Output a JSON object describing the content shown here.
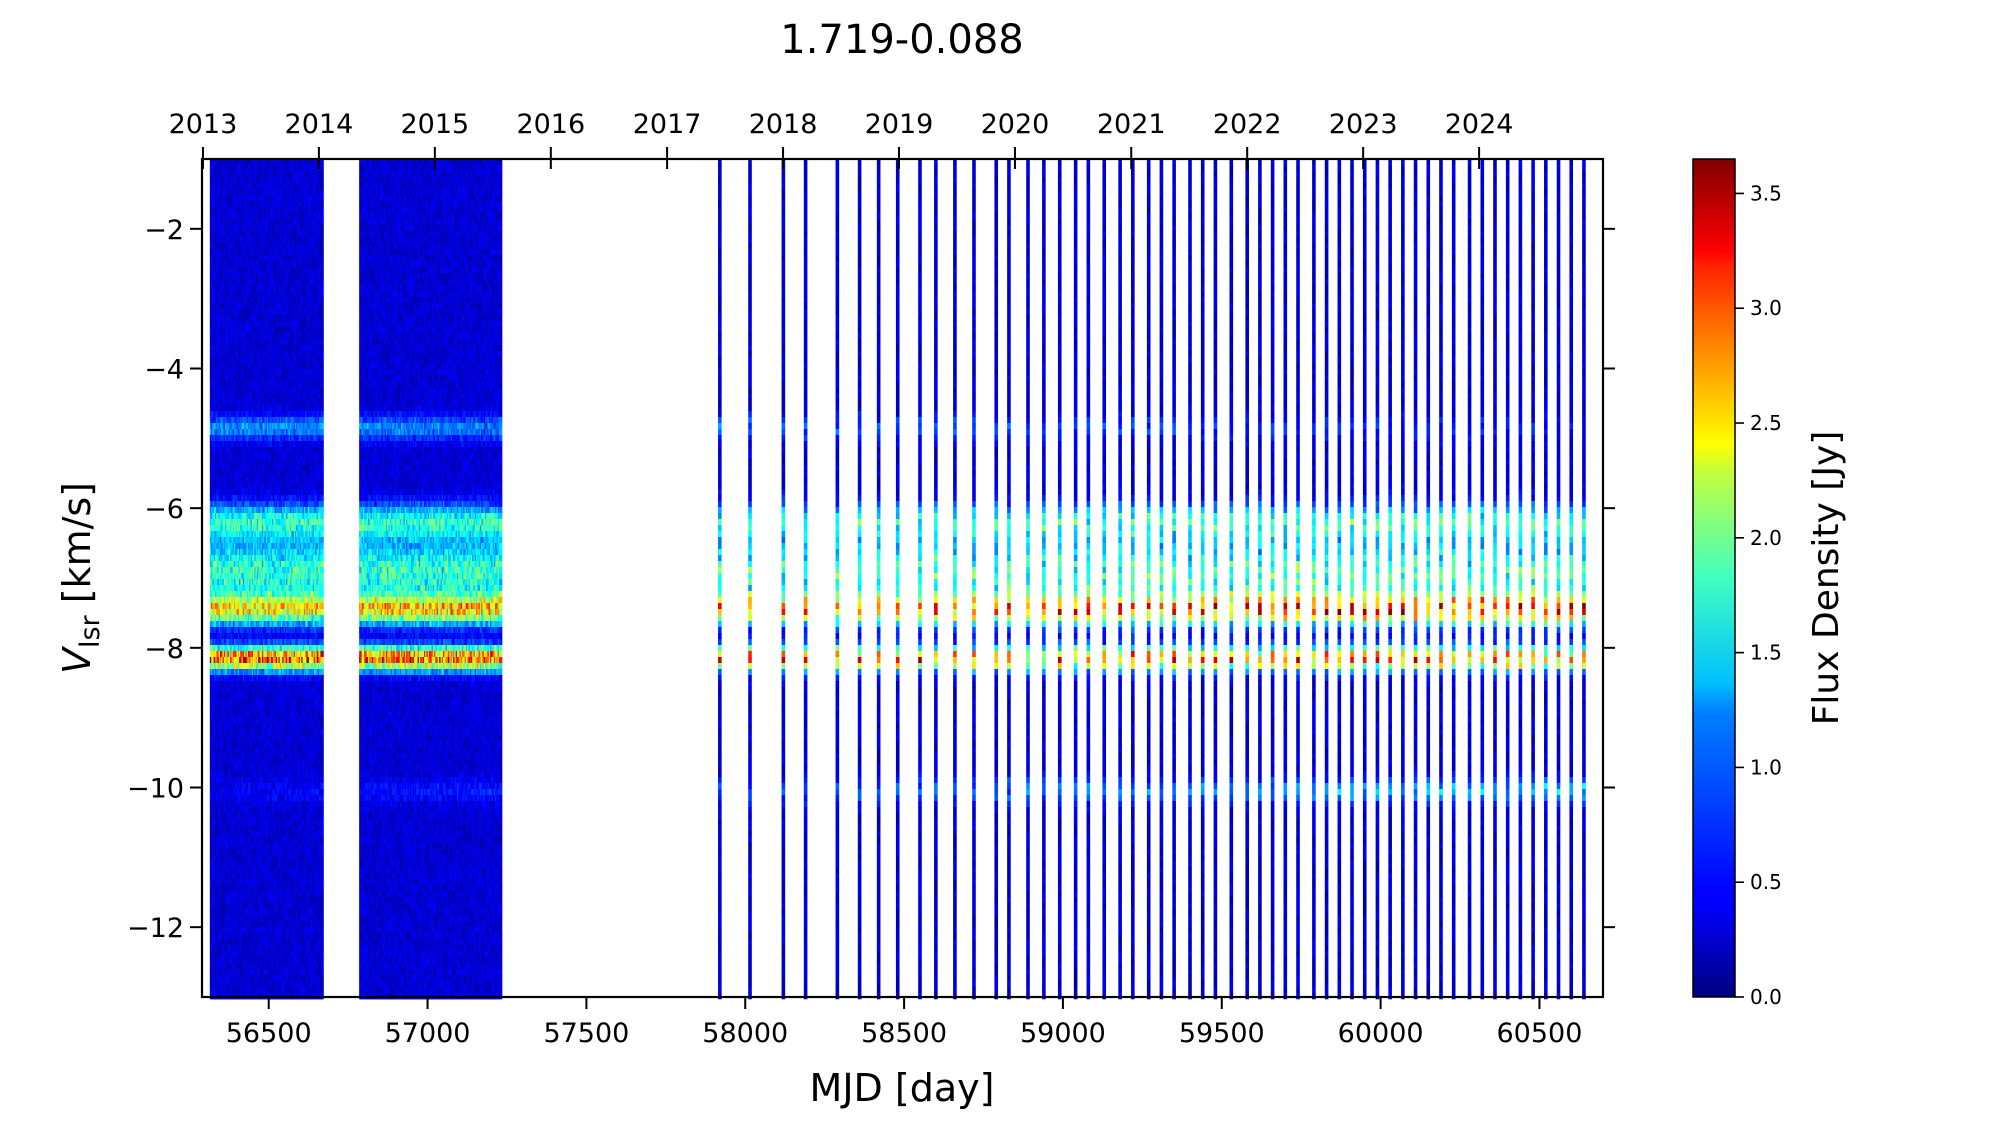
{
  "chart_data": {
    "type": "heatmap",
    "title": "1.719-0.088",
    "xlabel": "MJD [day]",
    "ylabel_main": "V",
    "ylabel_sub": "lsr",
    "ylabel_unit": " [km/s]",
    "colorbar_label": "Flux Density [Jy]",
    "colormap": "jet",
    "xlim": [
      56290,
      60700
    ],
    "ylim": [
      -13,
      -1
    ],
    "zlim": [
      0,
      3.65
    ],
    "x_ticks": [
      56500,
      57000,
      57500,
      58000,
      58500,
      59000,
      59500,
      60000,
      60500
    ],
    "y_ticks": [
      -2,
      -4,
      -6,
      -8,
      -10,
      -12
    ],
    "top_year_ticks": [
      {
        "label": "2013",
        "mjd": 56293
      },
      {
        "label": "2014",
        "mjd": 56658
      },
      {
        "label": "2015",
        "mjd": 57023
      },
      {
        "label": "2016",
        "mjd": 57388
      },
      {
        "label": "2017",
        "mjd": 57754
      },
      {
        "label": "2018",
        "mjd": 58119
      },
      {
        "label": "2019",
        "mjd": 58484
      },
      {
        "label": "2020",
        "mjd": 58849
      },
      {
        "label": "2021",
        "mjd": 59215
      },
      {
        "label": "2022",
        "mjd": 59580
      },
      {
        "label": "2023",
        "mjd": 59945
      },
      {
        "label": "2024",
        "mjd": 60310
      }
    ],
    "colorbar_ticks": [
      0.0,
      0.5,
      1.0,
      1.5,
      2.0,
      2.5,
      3.0,
      3.5
    ],
    "colorbar_tick_labels": [
      "0.0",
      "0.5",
      "1.0",
      "1.5",
      "2.0",
      "2.5",
      "3.0",
      "3.5"
    ],
    "dense_epochs": [
      {
        "start": 56320,
        "end": 56670,
        "spacing": 4
      },
      {
        "start": 56790,
        "end": 57230,
        "spacing": 4
      }
    ],
    "sparse_epochs_mjd": [
      57920,
      58015,
      58120,
      58190,
      58290,
      58360,
      58420,
      58480,
      58550,
      58600,
      58660,
      58720,
      58790,
      58830,
      58890,
      58940,
      58990,
      59040,
      59080,
      59130,
      59180,
      59220,
      59270,
      59310,
      59350,
      59400,
      59440,
      59480,
      59530,
      59580,
      59620,
      59660,
      59700,
      59740,
      59790,
      59830,
      59870,
      59910,
      59950,
      59990,
      60030,
      60070,
      60110,
      60150,
      60190,
      60230,
      60280,
      60320,
      60360,
      60400,
      60440,
      60480,
      60520,
      60560,
      60600,
      60640
    ],
    "emission_components": [
      {
        "v_center": -8.15,
        "v_width": 0.12,
        "peak_flux_early": 2.9,
        "peak_flux_late": 2.6
      },
      {
        "v_center": -7.45,
        "v_width": 0.15,
        "peak_flux_early": 2.0,
        "peak_flux_late": 2.9
      },
      {
        "v_center": -6.9,
        "v_width": 0.3,
        "peak_flux_early": 1.4,
        "peak_flux_late": 1.4
      },
      {
        "v_center": -6.2,
        "v_width": 0.18,
        "peak_flux_early": 1.3,
        "peak_flux_late": 1.3
      },
      {
        "v_center": -4.85,
        "v_width": 0.12,
        "peak_flux_early": 0.8,
        "peak_flux_late": 0.2
      },
      {
        "v_center": -10.05,
        "v_width": 0.12,
        "peak_flux_early": 0.1,
        "peak_flux_late": 1.0
      }
    ],
    "noise_floor_jy": 0.35,
    "grid": false
  }
}
